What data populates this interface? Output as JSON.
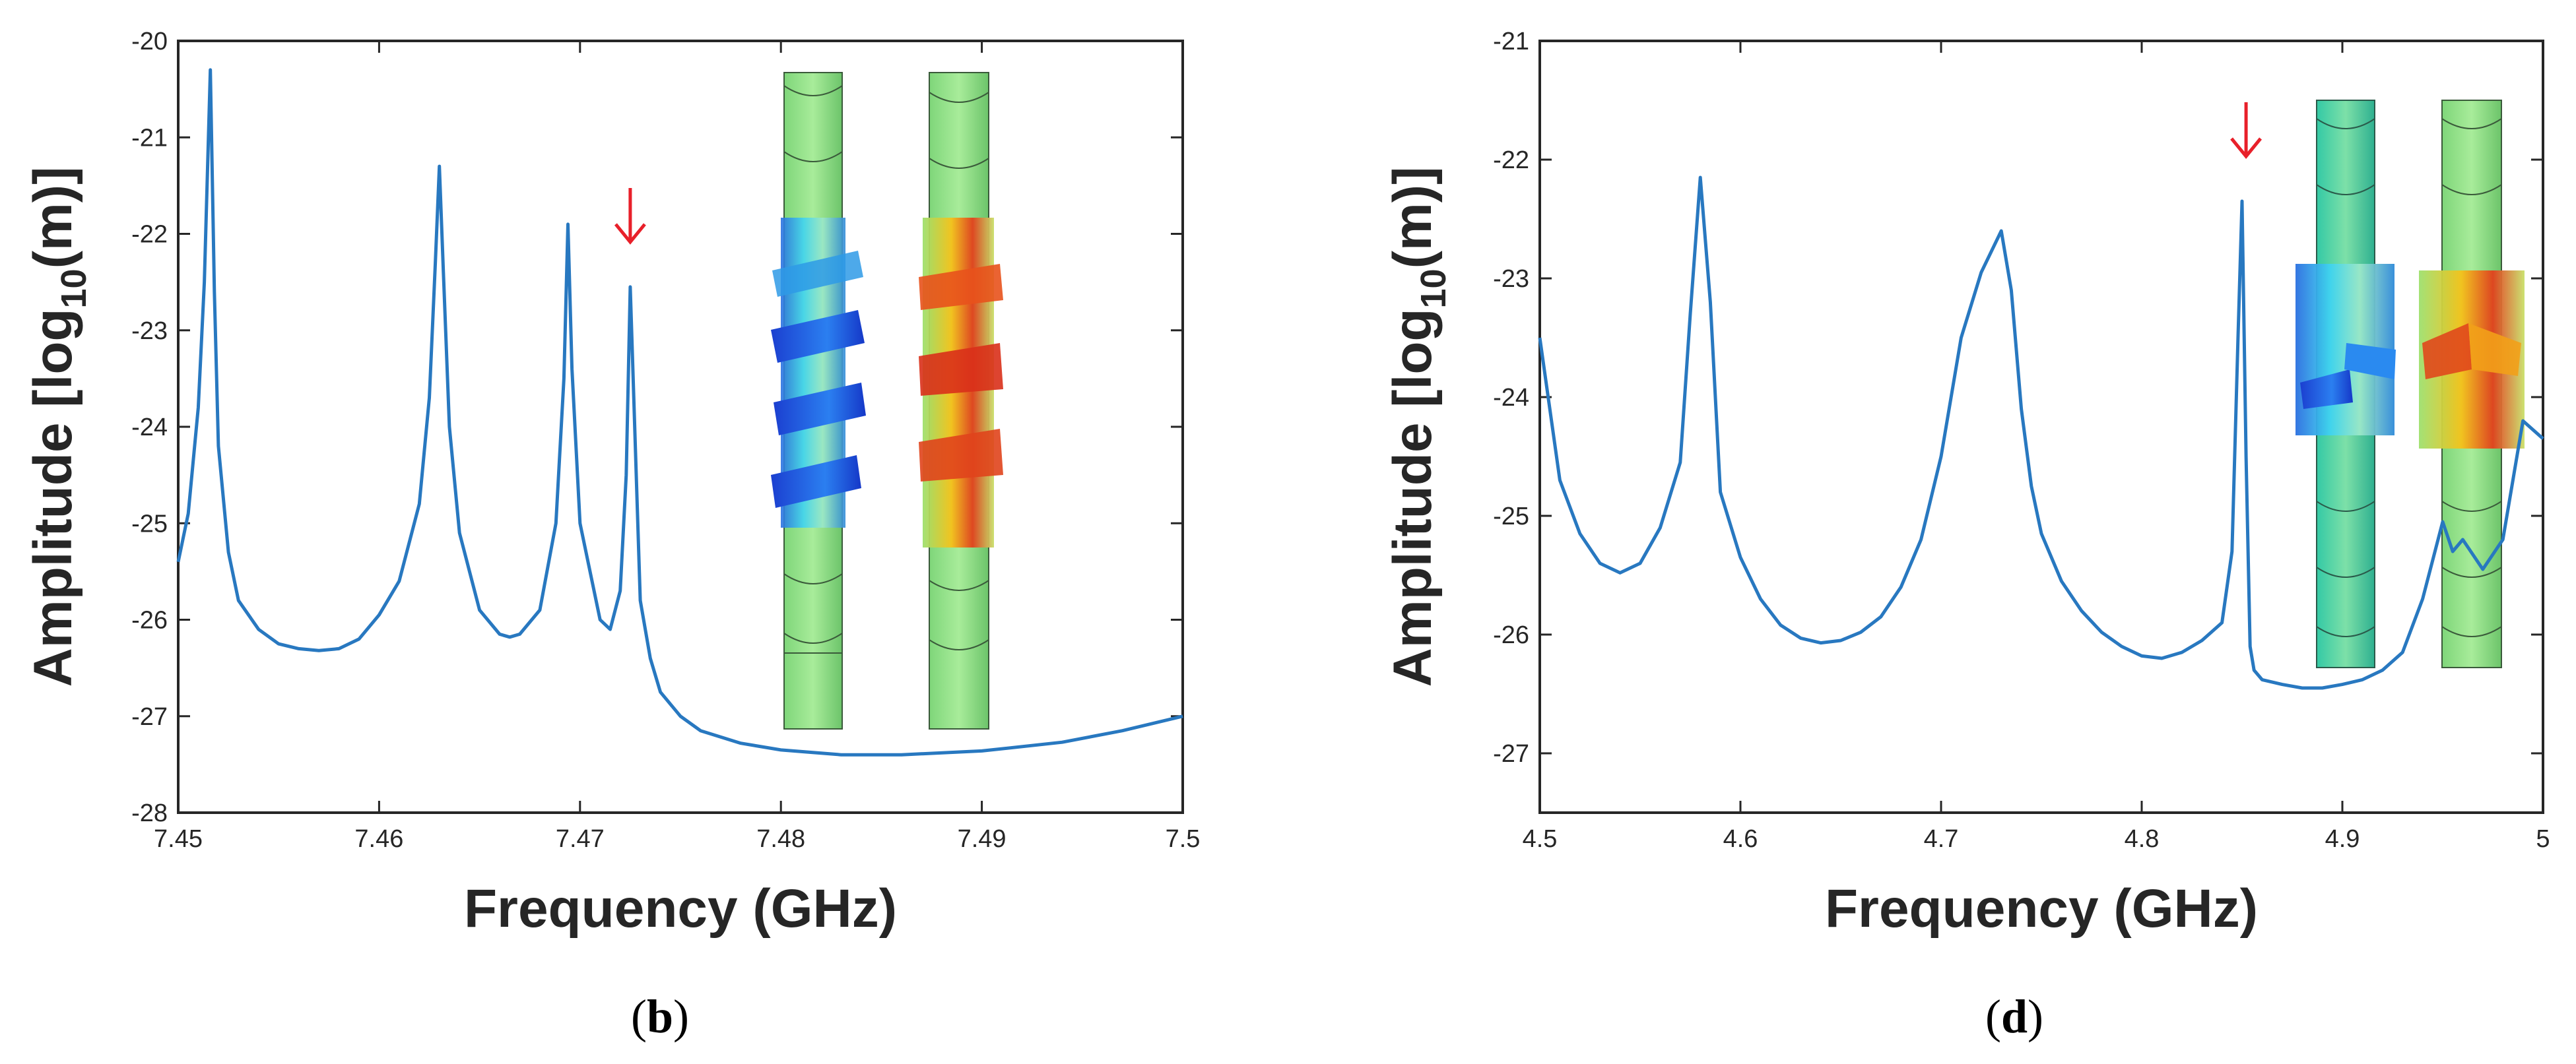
{
  "colors": {
    "line": "#2878c0",
    "axis": "#262626",
    "marker": "#e8202a"
  },
  "chart_data": [
    {
      "type": "line",
      "panel_label": "b",
      "xlabel": "Frequency (GHz)",
      "ylabel_main": "Amplitude [log",
      "ylabel_sub": "10",
      "ylabel_end": "(m)]",
      "xlim": [
        7.45,
        7.5
      ],
      "ylim": [
        -28,
        -20
      ],
      "xticks": [
        "7.45",
        "7.46",
        "7.47",
        "7.48",
        "7.49",
        "7.5"
      ],
      "yticks": [
        "-20",
        "-21",
        "-22",
        "-23",
        "-24",
        "-25",
        "-26",
        "-27",
        "-28"
      ],
      "arrow_at": {
        "x": 7.4725,
        "y": -22.55
      },
      "x": [
        7.45,
        7.4505,
        7.451,
        7.4513,
        7.4516,
        7.4518,
        7.452,
        7.4525,
        7.453,
        7.454,
        7.455,
        7.456,
        7.457,
        7.458,
        7.459,
        7.46,
        7.461,
        7.462,
        7.4625,
        7.4628,
        7.463,
        7.4632,
        7.4635,
        7.464,
        7.465,
        7.466,
        7.4665,
        7.467,
        7.468,
        7.4688,
        7.4692,
        7.4694,
        7.4696,
        7.47,
        7.471,
        7.4715,
        7.472,
        7.4723,
        7.4725,
        7.4728,
        7.473,
        7.4735,
        7.474,
        7.475,
        7.476,
        7.478,
        7.48,
        7.483,
        7.486,
        7.49,
        7.494,
        7.497,
        7.5
      ],
      "y": [
        -25.4,
        -24.9,
        -23.8,
        -22.5,
        -20.3,
        -22.6,
        -24.2,
        -25.3,
        -25.8,
        -26.1,
        -26.25,
        -26.3,
        -26.32,
        -26.3,
        -26.2,
        -25.95,
        -25.6,
        -24.8,
        -23.7,
        -22.3,
        -21.3,
        -22.4,
        -24.0,
        -25.1,
        -25.9,
        -26.15,
        -26.18,
        -26.15,
        -25.9,
        -25.0,
        -23.5,
        -21.9,
        -23.4,
        -25.0,
        -26.0,
        -26.1,
        -25.7,
        -24.5,
        -22.55,
        -24.5,
        -25.8,
        -26.4,
        -26.75,
        -27.0,
        -27.15,
        -27.28,
        -27.35,
        -27.4,
        -27.4,
        -27.36,
        -27.27,
        -27.15,
        -27.0
      ]
    },
    {
      "type": "line",
      "panel_label": "d",
      "xlabel": "Frequency (GHz)",
      "ylabel_main": "Amplitude [log",
      "ylabel_sub": "10",
      "ylabel_end": "(m)]",
      "xlim": [
        4.5,
        5.0
      ],
      "ylim": [
        -27.5,
        -21
      ],
      "xticks": [
        "4.5",
        "4.6",
        "4.7",
        "4.8",
        "4.9",
        "5"
      ],
      "yticks": [
        "-21",
        "-22",
        "-23",
        "-24",
        "-25",
        "-26",
        "-27"
      ],
      "arrow_at": {
        "x": 4.852,
        "y": -22.35
      },
      "x": [
        4.5,
        4.51,
        4.52,
        4.53,
        4.54,
        4.55,
        4.56,
        4.57,
        4.575,
        4.58,
        4.585,
        4.59,
        4.6,
        4.61,
        4.62,
        4.63,
        4.64,
        4.65,
        4.66,
        4.67,
        4.68,
        4.69,
        4.7,
        4.71,
        4.72,
        4.73,
        4.735,
        4.74,
        4.745,
        4.75,
        4.76,
        4.77,
        4.78,
        4.79,
        4.8,
        4.81,
        4.82,
        4.83,
        4.84,
        4.845,
        4.848,
        4.85,
        4.852,
        4.854,
        4.856,
        4.86,
        4.87,
        4.88,
        4.89,
        4.9,
        4.91,
        4.92,
        4.93,
        4.94,
        4.95,
        4.955,
        4.96,
        4.97,
        4.98,
        4.99,
        5.0
      ],
      "y": [
        -23.5,
        -24.7,
        -25.15,
        -25.4,
        -25.48,
        -25.4,
        -25.1,
        -24.55,
        -23.3,
        -22.15,
        -23.2,
        -24.8,
        -25.35,
        -25.7,
        -25.92,
        -26.03,
        -26.07,
        -26.05,
        -25.98,
        -25.85,
        -25.6,
        -25.2,
        -24.5,
        -23.5,
        -22.95,
        -22.6,
        -23.1,
        -24.1,
        -24.75,
        -25.15,
        -25.55,
        -25.8,
        -25.98,
        -26.1,
        -26.18,
        -26.2,
        -26.15,
        -26.05,
        -25.9,
        -25.3,
        -23.5,
        -22.35,
        -24.5,
        -26.1,
        -26.3,
        -26.38,
        -26.42,
        -26.45,
        -26.45,
        -26.42,
        -26.38,
        -26.3,
        -26.15,
        -25.7,
        -25.05,
        -25.3,
        -25.2,
        -25.45,
        -25.2,
        -24.2,
        -24.35
      ]
    }
  ]
}
